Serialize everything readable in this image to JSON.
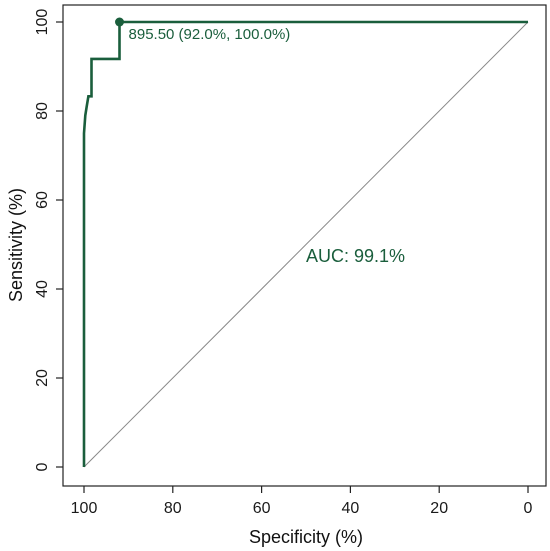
{
  "chart_data": {
    "type": "line",
    "xlabel": "Specificity (%)",
    "ylabel": "Sensitivity (%)",
    "xlim": [
      100,
      0
    ],
    "ylim": [
      0,
      100
    ],
    "x_reversed": true,
    "xticks": [
      100,
      80,
      60,
      40,
      20,
      0
    ],
    "yticks": [
      0,
      20,
      40,
      60,
      80,
      100
    ],
    "grid": false,
    "series": [
      {
        "type": "step-line",
        "color": "#1a5e3c",
        "x": [
          100,
          100,
          99.7,
          99.4,
          99.0,
          98.3,
          98.3,
          96.4,
          92.0,
          92.0,
          0
        ],
        "y": [
          0,
          75.0,
          79.0,
          81.0,
          83.3,
          83.3,
          91.7,
          91.7,
          91.7,
          100.0,
          100.0
        ]
      }
    ],
    "reference_line": {
      "x": [
        100,
        0
      ],
      "y": [
        0,
        100
      ],
      "color": "#888888"
    },
    "highlight_point": {
      "x": 92.0,
      "y": 100.0,
      "label": "895.50 (92.0%, 100.0%)"
    },
    "auc_label": "AUC: 99.1%"
  }
}
